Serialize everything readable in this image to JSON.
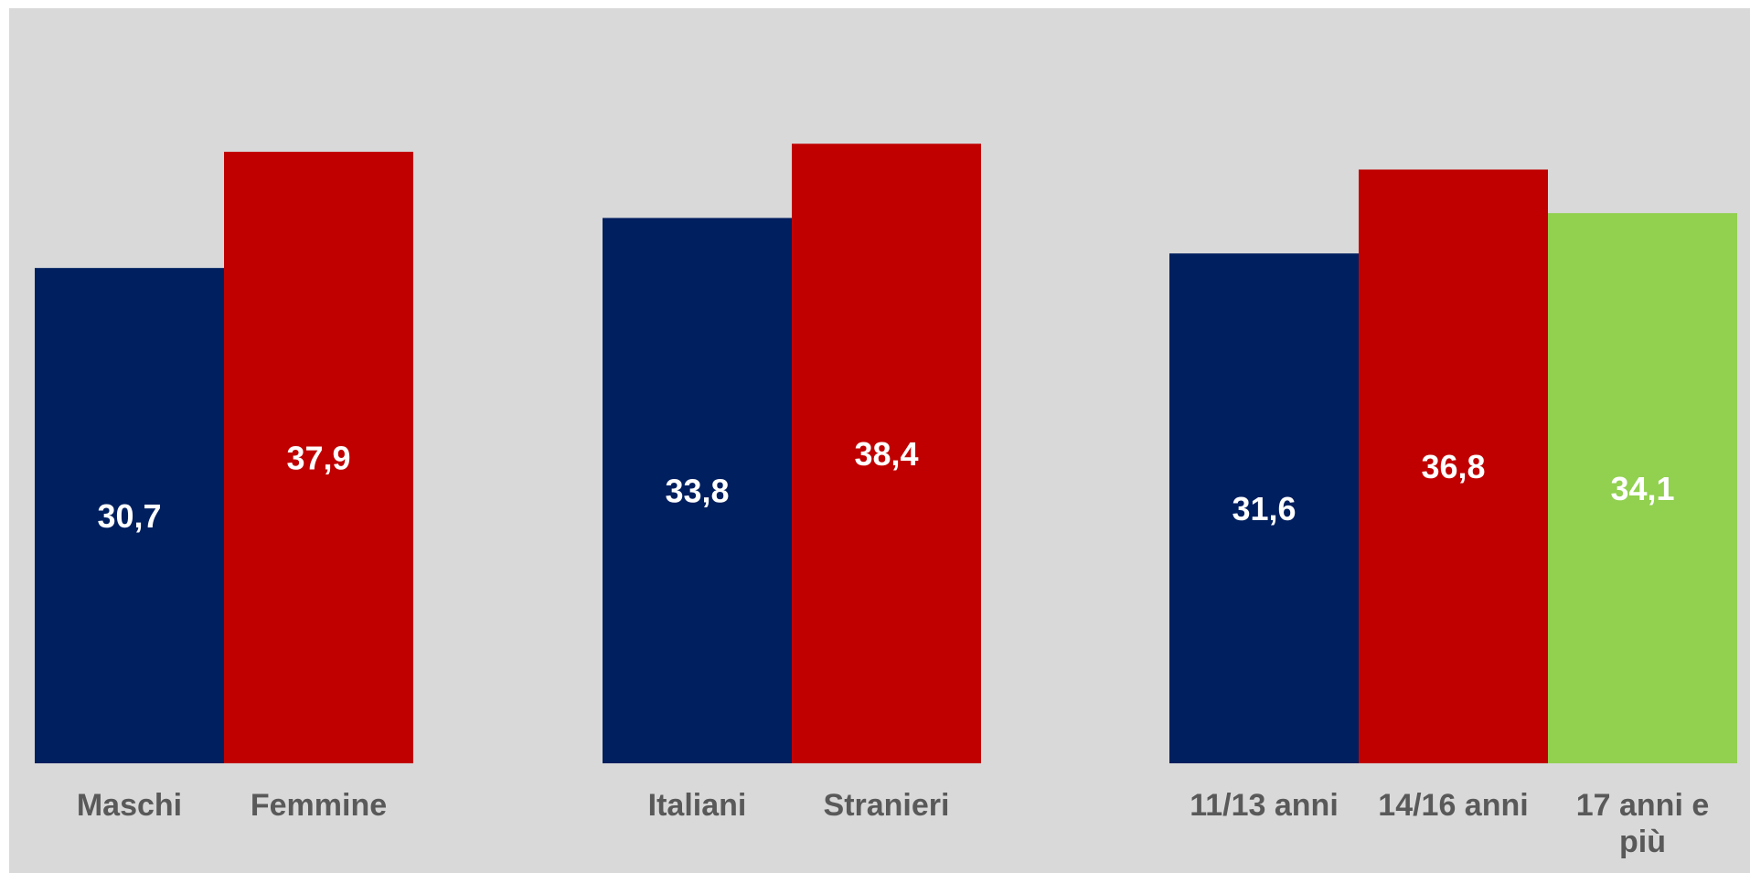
{
  "chart_data": {
    "type": "bar",
    "title": "",
    "xlabel": "",
    "ylabel": "",
    "ylim": [
      0,
      46.5
    ],
    "grid": false,
    "legend": "none",
    "groups": [
      {
        "bars": [
          {
            "label": "Maschi",
            "value": 30.7,
            "display": "30,7",
            "color": "#001f5f"
          },
          {
            "label": "Femmine",
            "value": 37.9,
            "display": "37,9",
            "color": "#c00000"
          }
        ]
      },
      {
        "bars": [
          {
            "label": "Italiani",
            "value": 33.8,
            "display": "33,8",
            "color": "#001f5f"
          },
          {
            "label": "Stranieri",
            "value": 38.4,
            "display": "38,4",
            "color": "#c00000"
          }
        ]
      },
      {
        "bars": [
          {
            "label": "11/13 anni",
            "value": 31.6,
            "display": "31,6",
            "color": "#001f5f"
          },
          {
            "label": "14/16 anni",
            "value": 36.8,
            "display": "36,8",
            "color": "#c00000"
          },
          {
            "label": "17 anni e più",
            "value": 34.1,
            "display": "34,1",
            "color": "#92d050"
          }
        ]
      }
    ]
  }
}
